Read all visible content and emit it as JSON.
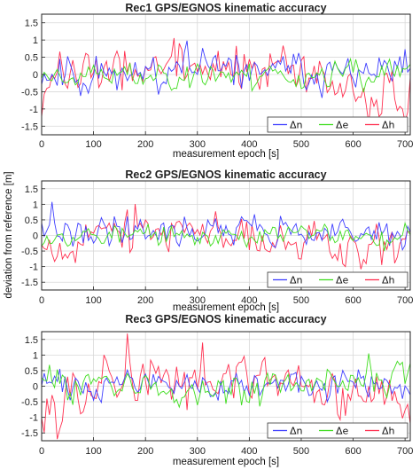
{
  "figure": {
    "ylabel": "deviation from reference [m]"
  },
  "chart_data": [
    {
      "type": "line",
      "title": "Rec1 GPS/EGNOS kinematic accuracy",
      "xlabel": "measurement epoch [s]",
      "ylabel": "deviation from reference [m]",
      "xlim": [
        0,
        710
      ],
      "ylim": [
        -1.75,
        1.75
      ],
      "xticks": [
        0,
        100,
        200,
        300,
        400,
        500,
        600,
        700
      ],
      "yticks": [
        -1.5,
        -1,
        -0.5,
        0,
        0.5,
        1,
        1.5
      ],
      "grid": true,
      "legend": "bottom-right",
      "x": {
        "start": 0,
        "end": 710,
        "step": 5
      },
      "series": [
        {
          "name": "Δn",
          "color": "#4040ff",
          "mean": 0.05,
          "spread": 0.27,
          "seed": 11,
          "trend": 0.08
        },
        {
          "name": "Δe",
          "color": "#40dd20",
          "mean": 0.0,
          "spread": 0.18,
          "seed": 23,
          "trend": 0.0
        },
        {
          "name": "Δh",
          "color": "#ff3050",
          "mean": -0.2,
          "spread": 0.35,
          "seed": 37,
          "trend": 0.45
        }
      ]
    },
    {
      "type": "line",
      "title": "Rec2 GPS/EGNOS kinematic accuracy",
      "xlabel": "measurement epoch [s]",
      "ylabel": "deviation from reference [m]",
      "xlim": [
        0,
        710
      ],
      "ylim": [
        -1.75,
        1.75
      ],
      "xticks": [
        0,
        100,
        200,
        300,
        400,
        500,
        600,
        700
      ],
      "yticks": [
        -1.5,
        -1,
        -0.5,
        0,
        0.5,
        1,
        1.5
      ],
      "grid": true,
      "legend": "bottom-right",
      "x": {
        "start": 0,
        "end": 710,
        "step": 5
      },
      "series": [
        {
          "name": "Δn",
          "color": "#4040ff",
          "mean": 0.1,
          "spread": 0.24,
          "seed": 41,
          "trend": 0.12
        },
        {
          "name": "Δe",
          "color": "#40dd20",
          "mean": 0.0,
          "spread": 0.16,
          "seed": 53,
          "trend": 0.0
        },
        {
          "name": "Δh",
          "color": "#ff3050",
          "mean": -0.2,
          "spread": 0.3,
          "seed": 67,
          "trend": 0.35
        }
      ]
    },
    {
      "type": "line",
      "title": "Rec3 GPS/EGNOS kinematic accuracy",
      "xlabel": "measurement epoch [s]",
      "ylabel": "deviation from reference [m]",
      "xlim": [
        0,
        710
      ],
      "ylim": [
        -1.75,
        1.75
      ],
      "xticks": [
        0,
        100,
        200,
        300,
        400,
        500,
        600,
        700
      ],
      "yticks": [
        -1.5,
        -1,
        -0.5,
        0,
        0.5,
        1,
        1.5
      ],
      "grid": true,
      "legend": "bottom-right",
      "x": {
        "start": 0,
        "end": 710,
        "step": 5
      },
      "series": [
        {
          "name": "Δn",
          "color": "#4040ff",
          "mean": 0.05,
          "spread": 0.22,
          "seed": 71,
          "trend": 0.0
        },
        {
          "name": "Δe",
          "color": "#40dd20",
          "mean": 0.15,
          "spread": 0.26,
          "seed": 83,
          "trend": -0.2
        },
        {
          "name": "Δh",
          "color": "#ff3050",
          "mean": -0.25,
          "spread": 0.42,
          "seed": 97,
          "trend": 0.4
        }
      ]
    }
  ]
}
